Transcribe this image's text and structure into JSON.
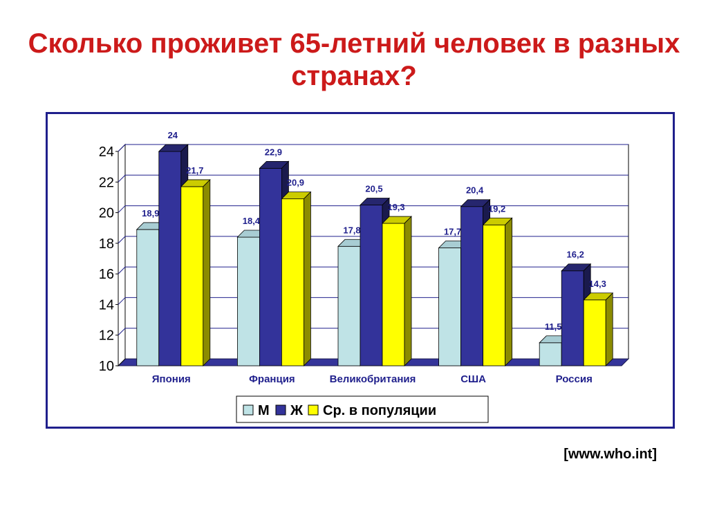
{
  "page": {
    "title": "Сколько проживет 65-летний человек в разных странах?",
    "source": "[www.who.int]"
  },
  "chart_data": {
    "type": "bar",
    "title": "",
    "xlabel": "",
    "ylabel": "",
    "ylim": [
      10,
      24
    ],
    "yticks": [
      10,
      12,
      14,
      16,
      18,
      20,
      22,
      24
    ],
    "grid": true,
    "legend_position": "bottom",
    "categories": [
      "Япония",
      "Франция",
      "Великобритания",
      "США",
      "Россия"
    ],
    "series": [
      {
        "name": "М",
        "values": [
          18.9,
          18.4,
          17.8,
          17.7,
          11.5
        ],
        "labels": [
          "18,9",
          "18,4",
          "17,8",
          "17,7",
          "11,5"
        ],
        "color": "#bfe3e6",
        "side": "#7fa9b0",
        "top": "#a8cdd3"
      },
      {
        "name": "Ж",
        "values": [
          24,
          22.9,
          20.5,
          20.4,
          16.2
        ],
        "labels": [
          "24",
          "22,9",
          "20,5",
          "20,4",
          "16,2"
        ],
        "color": "#33339a",
        "side": "#1a1a4d",
        "top": "#26266e"
      },
      {
        "name": "Ср. в популяции",
        "values": [
          21.7,
          20.9,
          19.3,
          19.2,
          14.3
        ],
        "labels": [
          "21,7",
          "20,9",
          "19,3",
          "19,2",
          "14,3"
        ],
        "color": "#ffff00",
        "side": "#8c8c00",
        "top": "#cccc00"
      }
    ]
  }
}
